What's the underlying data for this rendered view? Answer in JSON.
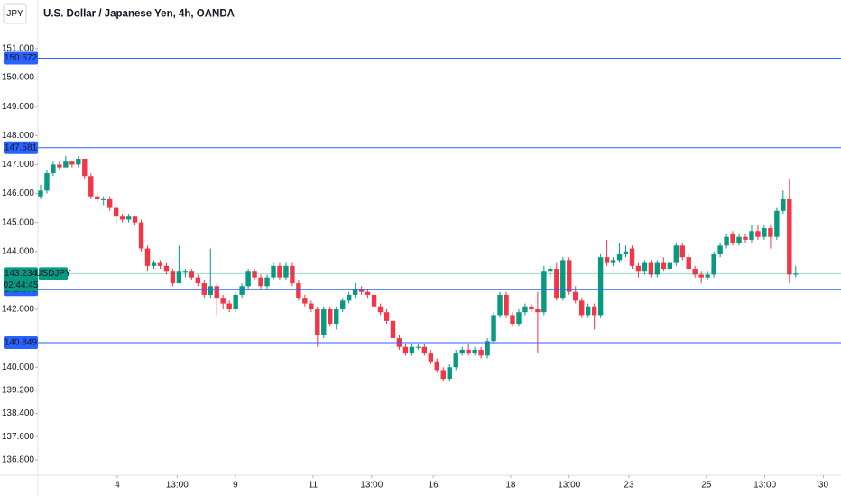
{
  "header": {
    "symbol": "JPY",
    "title": "U.S. Dollar / Japanese Yen, 4h, OANDA"
  },
  "chart_data": {
    "type": "candlestick",
    "name": "USDJPY",
    "up_color": "#089981",
    "down_color": "#f23645",
    "line_color": "#2962ff",
    "ylim": [
      136.27,
      152.68
    ],
    "xlim": [
      -6.45,
      127.2
    ],
    "yticks": [
      {
        "value": 151,
        "label": "151.000"
      },
      {
        "value": 150,
        "label": "150.000"
      },
      {
        "value": 149,
        "label": "149.000"
      },
      {
        "value": 148,
        "label": "148.000"
      },
      {
        "value": 147,
        "label": "147.000"
      },
      {
        "value": 146,
        "label": "146.000"
      },
      {
        "value": 145,
        "label": "145.000"
      },
      {
        "value": 144,
        "label": "144.000"
      },
      {
        "value": 142,
        "label": "142.000"
      },
      {
        "value": 140,
        "label": "140.000"
      },
      {
        "value": 139.2,
        "label": "139.200"
      },
      {
        "value": 138.4,
        "label": "138.400"
      },
      {
        "value": 137.6,
        "label": "137.600"
      },
      {
        "value": 136.8,
        "label": "136.800"
      }
    ],
    "xticks": [
      {
        "value": 12.2,
        "label": "4"
      },
      {
        "value": 21.7,
        "label": "13:00"
      },
      {
        "value": 30.97,
        "label": "9"
      },
      {
        "value": 43.3,
        "label": "11"
      },
      {
        "value": 52.6,
        "label": "13:00"
      },
      {
        "value": 62.4,
        "label": "16"
      },
      {
        "value": 74.7,
        "label": "18"
      },
      {
        "value": 84.0,
        "label": "13:00"
      },
      {
        "value": 93.5,
        "label": "23"
      },
      {
        "value": 105.8,
        "label": "25"
      },
      {
        "value": 115.1,
        "label": "13:00"
      },
      {
        "value": 124.4,
        "label": "30"
      }
    ],
    "hlines": [
      150.672,
      147.581,
      142.675,
      140.849
    ],
    "last_price": 143.234,
    "countdown": "02:44:45",
    "candles": [
      [
        145.9,
        146.3,
        145.8,
        146.1
      ],
      [
        146.1,
        146.8,
        146.0,
        146.7
      ],
      [
        146.7,
        147.1,
        146.6,
        147.0
      ],
      [
        147.0,
        147.1,
        146.8,
        146.9
      ],
      [
        146.9,
        147.3,
        146.9,
        147.1
      ],
      [
        147.1,
        147.1,
        146.9,
        147.0
      ],
      [
        147.0,
        147.3,
        146.9,
        147.2
      ],
      [
        147.2,
        147.2,
        146.5,
        146.6
      ],
      [
        146.6,
        146.7,
        145.8,
        145.9
      ],
      [
        145.9,
        146.0,
        145.7,
        145.8
      ],
      [
        145.8,
        145.9,
        145.6,
        145.8
      ],
      [
        145.8,
        145.9,
        145.4,
        145.5
      ],
      [
        145.5,
        145.6,
        144.9,
        145.2
      ],
      [
        145.2,
        145.3,
        145.0,
        145.1
      ],
      [
        145.1,
        145.3,
        145.0,
        145.2
      ],
      [
        145.2,
        145.2,
        144.9,
        145.0
      ],
      [
        145.0,
        145.1,
        144.0,
        144.1
      ],
      [
        144.1,
        144.2,
        143.3,
        143.5
      ],
      [
        143.5,
        143.7,
        143.4,
        143.6
      ],
      [
        143.6,
        143.7,
        143.4,
        143.5
      ],
      [
        143.5,
        143.6,
        143.2,
        143.3
      ],
      [
        143.3,
        143.4,
        142.8,
        142.9
      ],
      [
        142.9,
        144.2,
        142.9,
        143.3
      ],
      [
        143.3,
        143.4,
        143.1,
        143.3
      ],
      [
        143.3,
        143.4,
        143.0,
        143.1
      ],
      [
        143.1,
        143.2,
        142.8,
        142.9
      ],
      [
        142.9,
        143.0,
        142.4,
        142.5
      ],
      [
        142.5,
        144.1,
        142.4,
        142.8
      ],
      [
        142.8,
        142.9,
        141.8,
        142.4
      ],
      [
        142.4,
        142.5,
        142.0,
        142.2
      ],
      [
        142.2,
        142.3,
        141.9,
        142.0
      ],
      [
        142.0,
        142.6,
        141.9,
        142.5
      ],
      [
        142.5,
        142.9,
        142.4,
        142.8
      ],
      [
        142.8,
        143.4,
        142.7,
        143.3
      ],
      [
        143.3,
        143.4,
        143.0,
        143.1
      ],
      [
        143.1,
        143.2,
        142.7,
        142.8
      ],
      [
        142.8,
        143.2,
        142.7,
        143.1
      ],
      [
        143.1,
        143.6,
        143.0,
        143.5
      ],
      [
        143.5,
        143.6,
        143.0,
        143.1
      ],
      [
        143.1,
        143.6,
        143.0,
        143.5
      ],
      [
        143.5,
        143.6,
        142.8,
        142.9
      ],
      [
        142.9,
        143.0,
        142.3,
        142.4
      ],
      [
        142.4,
        142.5,
        142.1,
        142.2
      ],
      [
        142.2,
        142.3,
        141.9,
        142.0
      ],
      [
        142.0,
        142.1,
        140.7,
        141.1
      ],
      [
        141.1,
        142.1,
        141.0,
        142.0
      ],
      [
        142.0,
        142.1,
        141.4,
        141.5
      ],
      [
        141.5,
        142.1,
        141.3,
        142.0
      ],
      [
        142.0,
        142.4,
        141.9,
        142.3
      ],
      [
        142.3,
        142.6,
        142.2,
        142.5
      ],
      [
        142.5,
        142.9,
        142.4,
        142.7
      ],
      [
        142.7,
        142.8,
        142.5,
        142.6
      ],
      [
        142.6,
        142.7,
        142.4,
        142.5
      ],
      [
        142.5,
        142.6,
        142.0,
        142.1
      ],
      [
        142.1,
        142.2,
        141.8,
        141.9
      ],
      [
        141.9,
        142.0,
        141.5,
        141.6
      ],
      [
        141.6,
        141.7,
        140.9,
        141.0
      ],
      [
        141.0,
        141.1,
        140.6,
        140.7
      ],
      [
        140.7,
        140.8,
        140.4,
        140.5
      ],
      [
        140.5,
        140.8,
        140.4,
        140.7
      ],
      [
        140.7,
        140.8,
        140.6,
        140.7
      ],
      [
        140.7,
        140.8,
        140.4,
        140.5
      ],
      [
        140.5,
        140.6,
        140.1,
        140.2
      ],
      [
        140.2,
        140.3,
        139.8,
        139.9
      ],
      [
        139.9,
        140.0,
        139.5,
        139.6
      ],
      [
        139.6,
        140.1,
        139.5,
        140.0
      ],
      [
        140.0,
        140.6,
        139.9,
        140.5
      ],
      [
        140.5,
        140.7,
        140.4,
        140.6
      ],
      [
        140.6,
        140.8,
        140.4,
        140.5
      ],
      [
        140.5,
        140.7,
        140.4,
        140.6
      ],
      [
        140.6,
        140.7,
        140.3,
        140.4
      ],
      [
        140.4,
        141.0,
        140.3,
        140.9
      ],
      [
        140.9,
        141.9,
        140.8,
        141.8
      ],
      [
        141.8,
        142.6,
        141.7,
        142.5
      ],
      [
        142.5,
        142.6,
        141.7,
        141.8
      ],
      [
        141.8,
        141.9,
        141.4,
        141.5
      ],
      [
        141.5,
        142.0,
        141.4,
        141.9
      ],
      [
        141.9,
        142.2,
        141.8,
        142.1
      ],
      [
        142.1,
        142.2,
        141.9,
        142.0
      ],
      [
        142.0,
        142.6,
        140.5,
        141.9
      ],
      [
        141.9,
        143.5,
        141.8,
        143.3
      ],
      [
        143.3,
        143.5,
        143.1,
        143.4
      ],
      [
        143.4,
        143.6,
        142.3,
        142.4
      ],
      [
        142.4,
        143.8,
        142.3,
        143.7
      ],
      [
        143.7,
        143.8,
        142.5,
        142.6
      ],
      [
        142.6,
        142.8,
        142.2,
        142.3
      ],
      [
        142.3,
        142.4,
        141.7,
        141.8
      ],
      [
        141.8,
        142.2,
        141.7,
        142.1
      ],
      [
        142.1,
        142.2,
        141.3,
        141.8
      ],
      [
        141.8,
        143.9,
        141.7,
        143.8
      ],
      [
        143.8,
        144.4,
        143.5,
        143.6
      ],
      [
        143.6,
        143.8,
        143.5,
        143.7
      ],
      [
        143.7,
        144.3,
        143.6,
        143.9
      ],
      [
        143.9,
        144.2,
        143.8,
        144.0
      ],
      [
        144.1,
        144.2,
        143.4,
        143.5
      ],
      [
        143.5,
        143.6,
        143.1,
        143.3
      ],
      [
        143.3,
        143.7,
        143.2,
        143.6
      ],
      [
        143.6,
        143.7,
        143.1,
        143.2
      ],
      [
        143.2,
        143.7,
        143.1,
        143.6
      ],
      [
        143.6,
        143.8,
        143.3,
        143.4
      ],
      [
        143.4,
        143.7,
        143.3,
        143.6
      ],
      [
        143.6,
        144.3,
        143.5,
        144.2
      ],
      [
        144.2,
        144.3,
        143.7,
        143.8
      ],
      [
        143.8,
        143.9,
        143.3,
        143.4
      ],
      [
        143.4,
        143.5,
        143.1,
        143.2
      ],
      [
        143.2,
        143.3,
        142.9,
        143.1
      ],
      [
        143.1,
        143.3,
        143.0,
        143.2
      ],
      [
        143.2,
        144.0,
        143.1,
        143.9
      ],
      [
        143.9,
        144.3,
        143.8,
        144.2
      ],
      [
        144.2,
        144.6,
        144.1,
        144.5
      ],
      [
        144.6,
        144.7,
        144.2,
        144.3
      ],
      [
        144.3,
        144.6,
        144.2,
        144.5
      ],
      [
        144.5,
        144.6,
        144.3,
        144.4
      ],
      [
        144.4,
        144.9,
        144.3,
        144.7
      ],
      [
        144.7,
        144.9,
        144.4,
        144.5
      ],
      [
        144.5,
        144.9,
        144.4,
        144.8
      ],
      [
        144.8,
        144.9,
        144.1,
        144.5
      ],
      [
        144.5,
        145.5,
        144.4,
        145.4
      ],
      [
        145.4,
        146.1,
        145.3,
        145.8
      ],
      [
        145.8,
        146.5,
        142.9,
        143.2
      ],
      [
        143.2,
        143.5,
        143.1,
        143.234
      ]
    ]
  }
}
